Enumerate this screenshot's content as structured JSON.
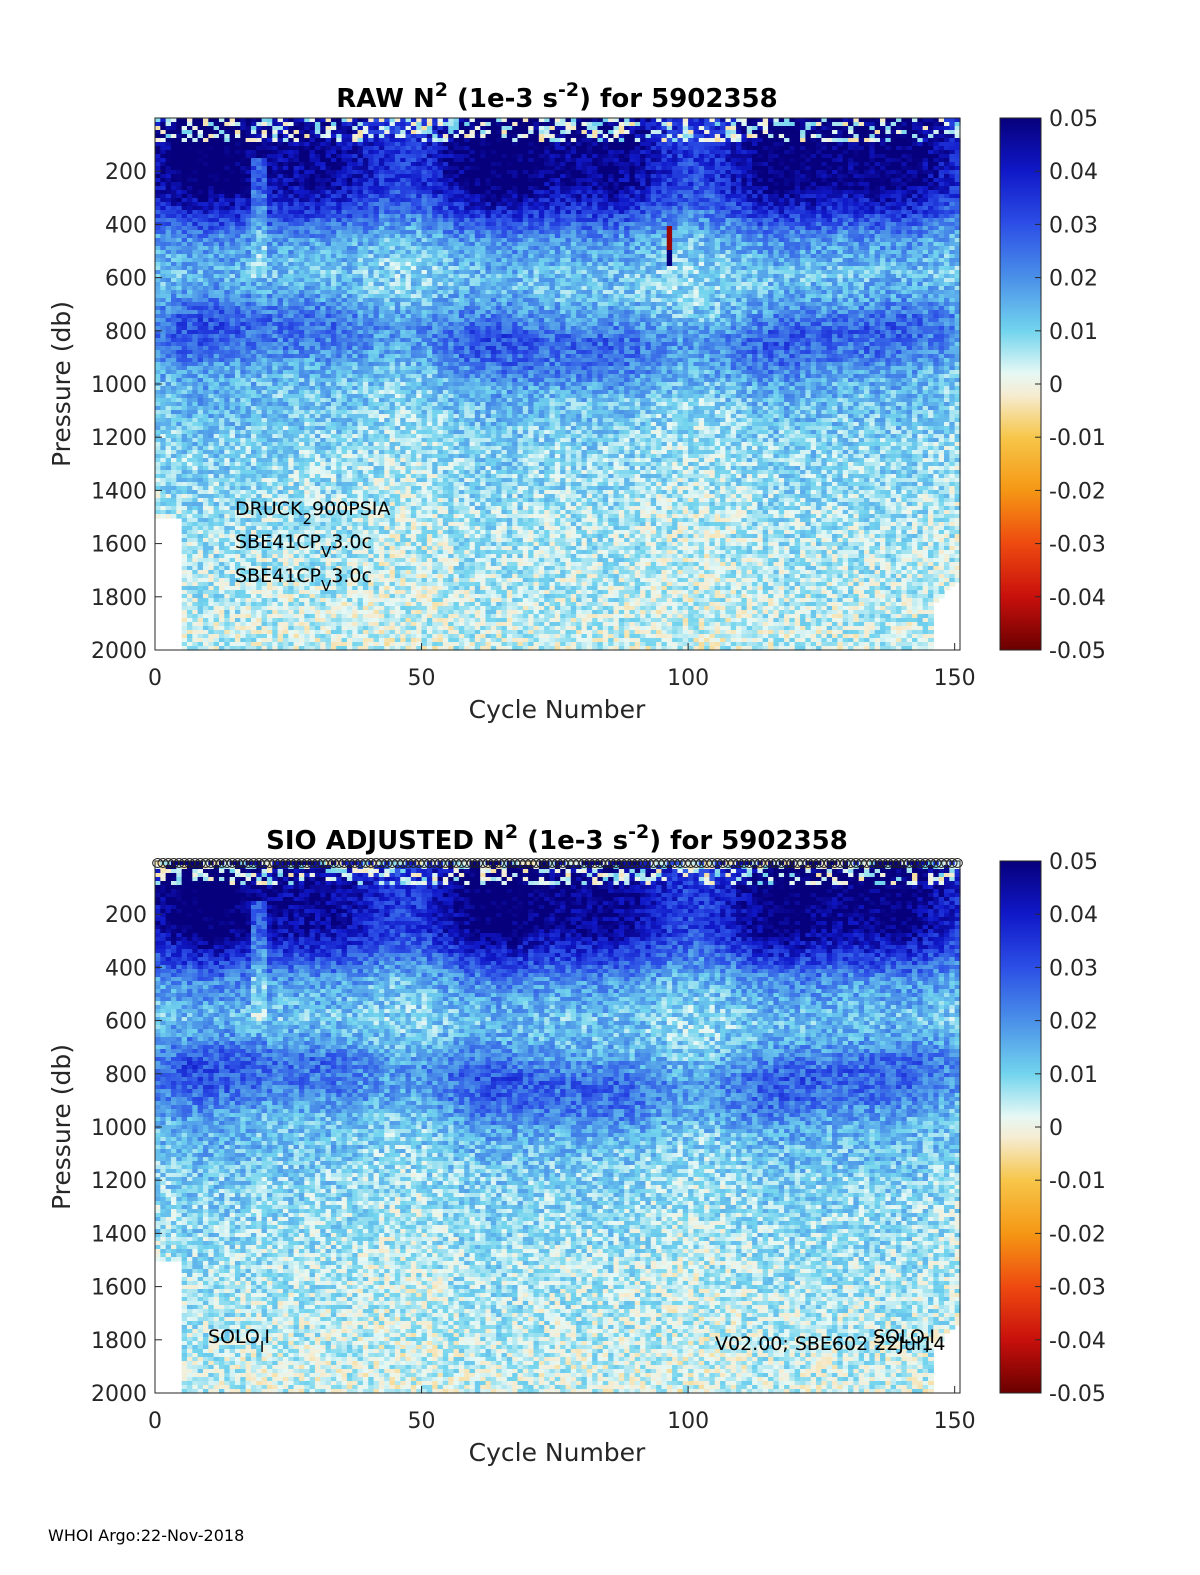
{
  "chart_data": [
    {
      "type": "heatmap",
      "title_parts": [
        "RAW N",
        "2",
        " (1e-3 s",
        "-2",
        ") for 5902358"
      ],
      "xlabel": "Cycle Number",
      "ylabel": "Pressure (db)",
      "xlim": [
        0,
        151
      ],
      "ylim": [
        2000,
        0
      ],
      "xticks": [
        "0",
        "50",
        "100",
        "150"
      ],
      "yticks": [
        "200",
        "400",
        "600",
        "800",
        "1000",
        "1200",
        "1400",
        "1600",
        "1800",
        "2000"
      ],
      "colorbar": {
        "range": [
          -0.05,
          0.05
        ],
        "ticks": [
          "0.05",
          "0.04",
          "0.03",
          "0.02",
          "0.01",
          "0",
          "-0.01",
          "-0.02",
          "-0.03",
          "-0.04",
          "-0.05"
        ]
      },
      "profile_n2_by_pressure": [
        {
          "pressure": 0,
          "n2": 0.046
        },
        {
          "pressure": 100,
          "n2": 0.046
        },
        {
          "pressure": 250,
          "n2": 0.044
        },
        {
          "pressure": 350,
          "n2": 0.032
        },
        {
          "pressure": 450,
          "n2": 0.018
        },
        {
          "pressure": 600,
          "n2": 0.011
        },
        {
          "pressure": 700,
          "n2": 0.016
        },
        {
          "pressure": 800,
          "n2": 0.025
        },
        {
          "pressure": 900,
          "n2": 0.022
        },
        {
          "pressure": 1000,
          "n2": 0.014
        },
        {
          "pressure": 1200,
          "n2": 0.009
        },
        {
          "pressure": 1500,
          "n2": 0.006
        },
        {
          "pressure": 2000,
          "n2": 0.003
        }
      ],
      "annotations": [
        {
          "parts": [
            "DRUCK",
            "2",
            "900PSIA"
          ]
        },
        {
          "parts": [
            "SBE41CP",
            "V",
            "3.0c"
          ]
        },
        {
          "parts": [
            "SBE41CP",
            "V",
            "3.0c"
          ]
        }
      ]
    },
    {
      "type": "heatmap",
      "title_parts": [
        "SIO  ADJUSTED N",
        "2",
        " (1e-3 s",
        "-2",
        ") for 5902358"
      ],
      "xlabel": "Cycle Number",
      "ylabel": "Pressure (db)",
      "xlim": [
        0,
        151
      ],
      "ylim": [
        2000,
        0
      ],
      "xticks": [
        "0",
        "50",
        "100",
        "150"
      ],
      "yticks": [
        "200",
        "400",
        "600",
        "800",
        "1000",
        "1200",
        "1400",
        "1600",
        "1800",
        "2000"
      ],
      "colorbar": {
        "range": [
          -0.05,
          0.05
        ],
        "ticks": [
          "0.05",
          "0.04",
          "0.03",
          "0.02",
          "0.01",
          "0",
          "-0.01",
          "-0.02",
          "-0.03",
          "-0.04",
          "-0.05"
        ]
      },
      "profile_n2_by_pressure": [
        {
          "pressure": 0,
          "n2": 0.046
        },
        {
          "pressure": 100,
          "n2": 0.046
        },
        {
          "pressure": 250,
          "n2": 0.044
        },
        {
          "pressure": 350,
          "n2": 0.032
        },
        {
          "pressure": 450,
          "n2": 0.018
        },
        {
          "pressure": 600,
          "n2": 0.011
        },
        {
          "pressure": 700,
          "n2": 0.016
        },
        {
          "pressure": 800,
          "n2": 0.025
        },
        {
          "pressure": 900,
          "n2": 0.022
        },
        {
          "pressure": 1000,
          "n2": 0.014
        },
        {
          "pressure": 1200,
          "n2": 0.009
        },
        {
          "pressure": 1500,
          "n2": 0.006
        },
        {
          "pressure": 2000,
          "n2": 0.003
        }
      ],
      "top_markers": "open circles at the surface, one per cycle",
      "annotations": [
        {
          "parts": [
            "SOLO",
            "I",
            "I"
          ]
        },
        {
          "parts": [
            "V02.00; SBE602 22Jul14"
          ]
        },
        {
          "parts": [
            "SOLO",
            "I",
            "I"
          ]
        }
      ]
    }
  ],
  "footer": "WHOI Argo:22-Nov-2018"
}
